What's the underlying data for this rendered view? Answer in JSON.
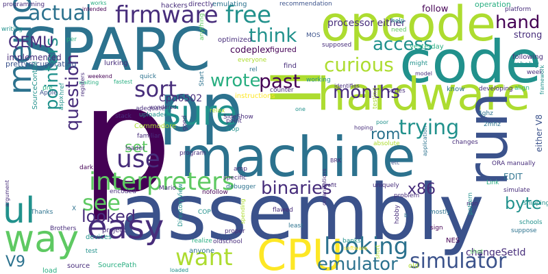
{
  "palette": {
    "purple": "#440154",
    "indigo": "#472d7b",
    "blue": "#3b528b",
    "slate": "#2c728e",
    "teal": "#21918c",
    "sea": "#28ae80",
    "green": "#5ec962",
    "lime": "#addc30",
    "yellow": "#fde725"
  },
  "words": [
    {
      "text": "p",
      "color": "purple"
    },
    {
      "text": "assembly",
      "color": "blue"
    },
    {
      "text": "SPARC",
      "color": "slate"
    },
    {
      "text": "code",
      "color": "teal"
    },
    {
      "text": "machine",
      "color": "slate"
    },
    {
      "text": "opcode",
      "color": "lime"
    },
    {
      "text": "hardware",
      "color": "lime"
    },
    {
      "text": "pp",
      "color": "slate"
    },
    {
      "text": "run",
      "color": "blue"
    },
    {
      "text": "ll",
      "color": "lime"
    },
    {
      "text": "CPU",
      "color": "yellow"
    },
    {
      "text": "way",
      "color": "green"
    },
    {
      "text": "easy",
      "color": "indigo"
    },
    {
      "text": "memory",
      "color": "slate"
    },
    {
      "text": "ul",
      "color": "teal"
    },
    {
      "text": "sure",
      "color": "teal"
    },
    {
      "text": "interpreters",
      "color": "green"
    },
    {
      "text": "firmware",
      "color": "indigo"
    },
    {
      "text": "actual",
      "color": "slate"
    },
    {
      "text": "free",
      "color": "teal"
    },
    {
      "text": "looking",
      "color": "slate"
    },
    {
      "text": "simulator",
      "color": "blue"
    },
    {
      "text": "emulator",
      "color": "slate"
    },
    {
      "text": "want",
      "color": "lime"
    },
    {
      "text": "use",
      "color": "indigo"
    },
    {
      "text": "see",
      "color": "green"
    },
    {
      "text": "binaries",
      "color": "indigo"
    },
    {
      "text": "sort",
      "color": "indigo"
    },
    {
      "text": "months",
      "color": "indigo"
    },
    {
      "text": "past",
      "color": "purple"
    },
    {
      "text": "trying",
      "color": "teal"
    },
    {
      "text": "curious",
      "color": "lime"
    },
    {
      "text": "access",
      "color": "teal"
    },
    {
      "text": "hand",
      "color": "purple"
    },
    {
      "text": "think",
      "color": "teal"
    },
    {
      "text": "wrote",
      "color": "sea"
    },
    {
      "text": "question",
      "color": "indigo"
    },
    {
      "text": "pointers",
      "color": "teal"
    },
    {
      "text": "looked",
      "color": "indigo"
    },
    {
      "text": "byte",
      "color": "teal"
    },
    {
      "text": "x86",
      "color": "indigo"
    },
    {
      "text": "QEMU",
      "color": "indigo"
    },
    {
      "text": "rom",
      "color": "slate"
    },
    {
      "text": "set",
      "color": "green"
    },
    {
      "text": "V9",
      "color": "slate"
    },
    {
      "text": "processor either",
      "color": "indigo"
    },
    {
      "text": "changeSetId",
      "color": "indigo"
    },
    {
      "text": "Cpu6502",
      "color": "indigo"
    },
    {
      "text": "EDIT",
      "color": "slate"
    },
    {
      "text": "either V8",
      "color": "blue"
    },
    {
      "text": "follow",
      "color": "purple"
    },
    {
      "text": "strong",
      "color": "indigo"
    },
    {
      "text": "codeplex",
      "color": "purple"
    },
    {
      "text": "figured",
      "color": "purple"
    },
    {
      "text": "implemented",
      "color": "indigo"
    },
    {
      "text": "prettyrecuperating",
      "color": "blue"
    },
    {
      "text": "programming",
      "color": "indigo"
    },
    {
      "text": "writing",
      "color": "teal"
    },
    {
      "text": "works",
      "color": "sea"
    },
    {
      "text": "intended",
      "color": "purple"
    },
    {
      "text": "hackers",
      "color": "indigo"
    },
    {
      "text": "directly",
      "color": "indigo"
    },
    {
      "text": "emulating",
      "color": "slate"
    },
    {
      "text": "recommendation",
      "color": "blue"
    },
    {
      "text": "operation",
      "color": "sea"
    },
    {
      "text": "platform",
      "color": "indigo"
    },
    {
      "text": "help",
      "color": "teal"
    },
    {
      "text": "need",
      "color": "green"
    },
    {
      "text": "MOS",
      "color": "blue"
    },
    {
      "text": "supposed",
      "color": "indigo"
    },
    {
      "text": "yesterday",
      "color": "sea"
    },
    {
      "text": "following",
      "color": "indigo"
    },
    {
      "text": "probably",
      "color": "teal"
    },
    {
      "text": "optimized",
      "color": "indigo"
    },
    {
      "text": "everyone",
      "color": "lime"
    },
    {
      "text": "per",
      "color": "sea"
    },
    {
      "text": "anything",
      "color": "green"
    },
    {
      "text": "lurking",
      "color": "indigo"
    },
    {
      "text": "weekend",
      "color": "purple"
    },
    {
      "text": "waiting",
      "color": "sea"
    },
    {
      "text": "fastest",
      "color": "sea"
    },
    {
      "text": "quick",
      "color": "slate"
    },
    {
      "text": "Start",
      "color": "slate"
    },
    {
      "text": "rel",
      "color": "slate"
    },
    {
      "text": "find",
      "color": "indigo"
    },
    {
      "text": "working",
      "color": "teal"
    },
    {
      "text": "identifies",
      "color": "indigo"
    },
    {
      "text": "organizations",
      "color": "indigo"
    },
    {
      "text": "might",
      "color": "teal"
    },
    {
      "text": "model",
      "color": "indigo"
    },
    {
      "text": "week",
      "color": "indigo"
    },
    {
      "text": "align",
      "color": "sea"
    },
    {
      "text": "Apple",
      "color": "blue"
    },
    {
      "text": "pre",
      "color": "sea"
    },
    {
      "text": "href",
      "color": "teal"
    },
    {
      "text": "registers",
      "color": "indigo"
    },
    {
      "text": "stack",
      "color": "indigo"
    },
    {
      "text": "adequate",
      "color": "indigo"
    },
    {
      "text": "uploaded",
      "color": "teal"
    },
    {
      "text": "wondered",
      "color": "indigo"
    },
    {
      "text": "instructions",
      "color": "yellow"
    },
    {
      "text": "relax",
      "color": "lime"
    },
    {
      "text": "counter",
      "color": "indigo"
    },
    {
      "text": "series",
      "color": "indigo"
    },
    {
      "text": "developing",
      "color": "indigo"
    },
    {
      "text": "framework",
      "color": "teal"
    },
    {
      "text": "know",
      "color": "slate"
    },
    {
      "text": "SourceControl",
      "color": "teal"
    },
    {
      "text": "aspx",
      "color": "teal"
    },
    {
      "text": "Commodore",
      "color": "lime"
    },
    {
      "text": "familiar",
      "color": "indigo"
    },
    {
      "text": "SideShow",
      "color": "indigo"
    },
    {
      "text": "one",
      "color": "teal"
    },
    {
      "text": "testing",
      "color": "lime"
    },
    {
      "text": "point",
      "color": "indigo"
    },
    {
      "text": "loop",
      "color": "teal"
    },
    {
      "text": "poor",
      "color": "teal"
    },
    {
      "text": "4ghz",
      "color": "slate"
    },
    {
      "text": "2mhz",
      "color": "slate"
    },
    {
      "text": "hoping",
      "color": "indigo"
    },
    {
      "text": "absolute",
      "color": "lime"
    },
    {
      "text": "changes",
      "color": "indigo"
    },
    {
      "text": "loader",
      "color": "indigo"
    },
    {
      "text": "dark",
      "color": "purple"
    },
    {
      "text": "program",
      "color": "indigo"
    },
    {
      "text": "amp",
      "color": "indigo"
    },
    {
      "text": "specific",
      "color": "indigo"
    },
    {
      "text": "debugger",
      "color": "slate"
    },
    {
      "text": "Mario",
      "color": "indigo"
    },
    {
      "text": "nofollow",
      "color": "purple"
    },
    {
      "text": "encoded",
      "color": "indigo"
    },
    {
      "text": "ORA manually",
      "color": "indigo"
    },
    {
      "text": "etc",
      "color": "blue"
    },
    {
      "text": "BRK",
      "color": "indigo"
    },
    {
      "text": "profit",
      "color": "indigo"
    },
    {
      "text": "application",
      "color": "slate"
    },
    {
      "text": "Link",
      "color": "sea"
    },
    {
      "text": "simulate",
      "color": "indigo"
    },
    {
      "text": "shipping",
      "color": "teal"
    },
    {
      "text": "uniquely",
      "color": "indigo"
    },
    {
      "text": "problem",
      "color": "indigo"
    },
    {
      "text": "mostly",
      "color": "slate"
    },
    {
      "text": "non",
      "color": "indigo"
    },
    {
      "text": "pattern",
      "color": "teal"
    },
    {
      "text": "schools",
      "color": "teal"
    },
    {
      "text": "suppose",
      "color": "slate"
    },
    {
      "text": "argument",
      "color": "indigo"
    },
    {
      "text": "Thanks",
      "color": "slate"
    },
    {
      "text": "Brothers",
      "color": "indigo"
    },
    {
      "text": "devices",
      "color": "teal"
    },
    {
      "text": "project",
      "color": "indigo"
    },
    {
      "text": "X",
      "color": "slate"
    },
    {
      "text": "DirectoryView",
      "color": "teal"
    },
    {
      "text": "COP",
      "color": "teal"
    },
    {
      "text": "proper",
      "color": "indigo"
    },
    {
      "text": "realize",
      "color": "sea"
    },
    {
      "text": "oldschool",
      "color": "indigo"
    },
    {
      "text": "anyone",
      "color": "slate"
    },
    {
      "text": "spending",
      "color": "lime"
    },
    {
      "text": "flawed",
      "color": "indigo"
    },
    {
      "text": "least",
      "color": "slate"
    },
    {
      "text": "banks",
      "color": "teal"
    },
    {
      "text": "software",
      "color": "yellow"
    },
    {
      "text": "NES",
      "color": "purple"
    },
    {
      "text": "sign",
      "color": "purple"
    },
    {
      "text": "hobby",
      "color": "indigo"
    },
    {
      "text": "b",
      "color": "slate"
    },
    {
      "text": "shot",
      "color": "green"
    },
    {
      "text": "old",
      "color": "lime"
    },
    {
      "text": "test",
      "color": "teal"
    },
    {
      "text": "load",
      "color": "sea"
    },
    {
      "text": "source",
      "color": "indigo"
    },
    {
      "text": "SourcePath",
      "color": "sea"
    },
    {
      "text": "loaded",
      "color": "teal"
    },
    {
      "text": "good",
      "color": "indigo"
    },
    {
      "text": "short",
      "color": "lime"
    }
  ]
}
